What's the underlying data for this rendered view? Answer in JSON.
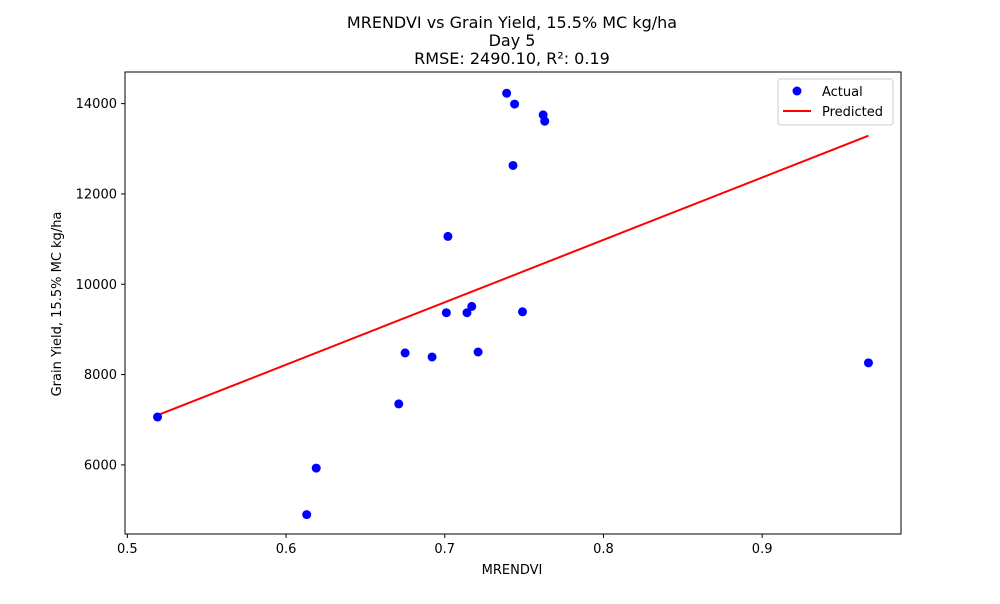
{
  "chart_data": {
    "type": "scatter",
    "title_lines": [
      "MRENDVI vs Grain Yield, 15.5% MC kg/ha",
      "Day 5",
      "RMSE: 2490.10, R²: 0.19"
    ],
    "xlabel": "MRENDVI",
    "ylabel": "Grain Yield, 15.5% MC kg/ha",
    "xlim": [
      0.4985,
      0.9875
    ],
    "ylim": [
      4470,
      14700
    ],
    "xticks": [
      0.5,
      0.6,
      0.7,
      0.8,
      0.9
    ],
    "xtick_labels": [
      "0.5",
      "0.6",
      "0.7",
      "0.8",
      "0.9"
    ],
    "yticks": [
      6000,
      8000,
      10000,
      12000,
      14000
    ],
    "ytick_labels": [
      "6000",
      "8000",
      "10000",
      "12000",
      "14000"
    ],
    "grid": false,
    "legend_position": "top-right",
    "series": [
      {
        "name": "Actual",
        "kind": "scatter",
        "color": "#0000ff",
        "points": [
          {
            "x": 0.519,
            "y": 7060
          },
          {
            "x": 0.613,
            "y": 4900
          },
          {
            "x": 0.619,
            "y": 5930
          },
          {
            "x": 0.671,
            "y": 7350
          },
          {
            "x": 0.675,
            "y": 8480
          },
          {
            "x": 0.692,
            "y": 8390
          },
          {
            "x": 0.701,
            "y": 9370
          },
          {
            "x": 0.702,
            "y": 11060
          },
          {
            "x": 0.714,
            "y": 9370
          },
          {
            "x": 0.717,
            "y": 9510
          },
          {
            "x": 0.721,
            "y": 8500
          },
          {
            "x": 0.739,
            "y": 14230
          },
          {
            "x": 0.743,
            "y": 12630
          },
          {
            "x": 0.744,
            "y": 13990
          },
          {
            "x": 0.749,
            "y": 9390
          },
          {
            "x": 0.762,
            "y": 13750
          },
          {
            "x": 0.763,
            "y": 13610
          },
          {
            "x": 0.967,
            "y": 8260
          }
        ]
      },
      {
        "name": "Predicted",
        "kind": "line",
        "color": "#ff0000",
        "points": [
          {
            "x": 0.519,
            "y": 7100
          },
          {
            "x": 0.967,
            "y": 13290
          }
        ]
      }
    ]
  }
}
